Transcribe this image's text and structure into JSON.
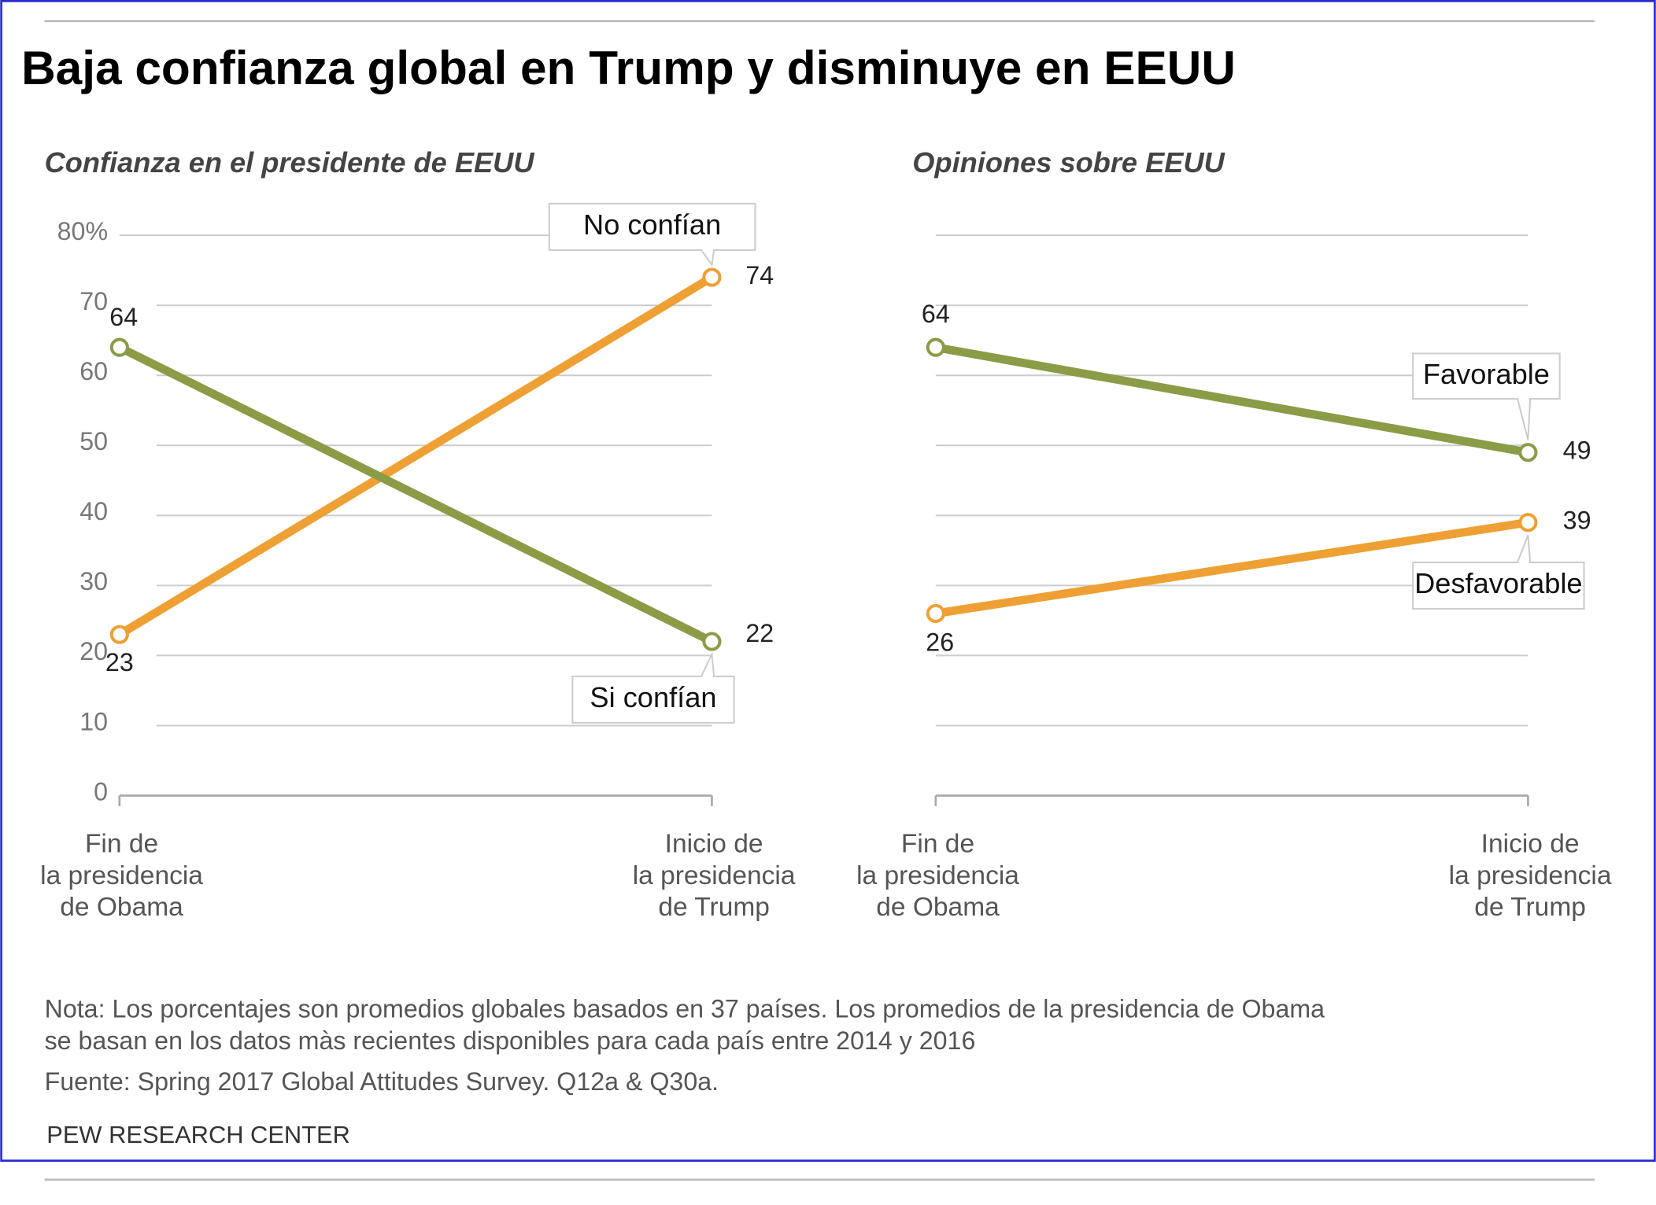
{
  "title": "Baja confianza global en Trump y disminuye en EEUU",
  "chart_data": [
    {
      "type": "line",
      "title": "Confianza en el presidente de EEUU",
      "categories": [
        "Fin de\nla presidencia\nde Obama",
        "Inicio de\nla presidencia\nde Trump"
      ],
      "series": [
        {
          "name": "No confían",
          "color": "#eea035",
          "values": [
            23,
            74
          ]
        },
        {
          "name": "Si confían",
          "color": "#8b9c47",
          "values": [
            64,
            22
          ]
        }
      ],
      "ylim": [
        0,
        80
      ],
      "yticks": [
        0,
        10,
        20,
        30,
        40,
        50,
        60,
        70,
        {
          "value": 80,
          "label": "80%"
        }
      ],
      "show_ytick_labels": true,
      "grid": true
    },
    {
      "type": "line",
      "title": "Opiniones sobre EEUU",
      "categories": [
        "Fin de\nla presidencia\nde Obama",
        "Inicio de\nla presidencia\nde Trump"
      ],
      "series": [
        {
          "name": "Favorable",
          "color": "#8b9c47",
          "values": [
            64,
            49
          ]
        },
        {
          "name": "Desfavorable",
          "color": "#eea035",
          "values": [
            26,
            39
          ]
        }
      ],
      "ylim": [
        0,
        80
      ],
      "yticks": [
        0,
        10,
        20,
        30,
        40,
        50,
        60,
        70,
        80
      ],
      "show_ytick_labels": false,
      "grid": true
    }
  ],
  "note": [
    "Nota: Los porcentajes son promedios globales basados en 37 países. Los promedios de la presidencia de Obama",
    "se basan en los datos màs recientes disponibles para cada país entre 2014 y 2016"
  ],
  "source": "Fuente: Spring 2017 Global Attitudes Survey. Q12a & Q30a.",
  "credit": "PEW RESEARCH CENTER"
}
